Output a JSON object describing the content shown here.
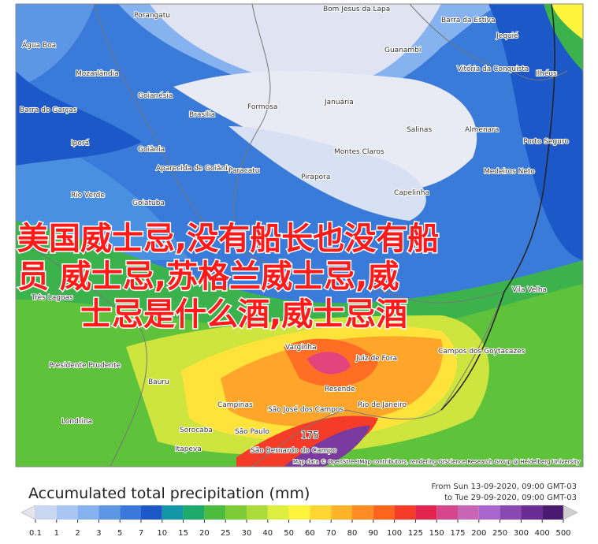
{
  "map": {
    "labels": [
      "Porangatu",
      "Bom Jesus da Lapa",
      "Barra da Estiva",
      "Jequié",
      "Água Boa",
      "Guanambi",
      "Mozarlândia",
      "Vitória da Conquista",
      "Ilhéus",
      "Goianésia",
      "Januária",
      "Barra do Garças",
      "Brasília",
      "Formosa",
      "Salinas",
      "Almenara",
      "Iporá",
      "Goiânia",
      "Montes Claros",
      "Porto Seguro",
      "Aparecida de Goiânia",
      "Paracatu",
      "Pirapora",
      "Medeiros Neto",
      "Rio Verde",
      "Capelinha",
      "Goiatuba",
      "Três Lagoas",
      "Presidente Prudente",
      "Bauru",
      "Varginha",
      "Juiz de Fora",
      "Campos dos Goytacazes",
      "Resende",
      "Rio de Janeiro",
      "Campinas",
      "São José dos Campos",
      "Londrina",
      "Sorocaba",
      "São Paulo",
      "Itapeva",
      "São Bernardo do Campo",
      "Vila Velha",
      "175"
    ],
    "attribution": "Map data © OpenStreetMap contributors, rendering GIScience Research Group @ Heidelberg University"
  },
  "overlay": {
    "lines": [
      "美国威士忌,没有船长也没有船",
      "员 威士忌,苏格兰威士忌,威",
      "士忌是什么酒,威士忌酒"
    ]
  },
  "legend": {
    "title": "Accumulated total precipitation (mm)",
    "from": "From Sun 13-09-2020, 09:00 GMT-03",
    "to": "to Tue 29-09-2020, 09:00 GMT-03",
    "ticks": [
      0.1,
      1,
      2,
      3,
      5,
      7,
      10,
      15,
      20,
      25,
      30,
      40,
      50,
      60,
      70,
      80,
      90,
      100,
      125,
      150,
      175,
      200,
      250,
      300,
      400,
      500
    ],
    "colors": [
      "#e4e4ee",
      "#c8d6f2",
      "#a9c6f2",
      "#86b2f0",
      "#5e96e6",
      "#3a78dc",
      "#1d58c8",
      "#1496a8",
      "#1eaa6a",
      "#4cbc3e",
      "#7ecb38",
      "#acdc3a",
      "#dcee3e",
      "#fff43c",
      "#ffd632",
      "#ffb428",
      "#ff8c22",
      "#ff641e",
      "#f43c28",
      "#e2244e",
      "#d6468c",
      "#c866b6",
      "#aa66cc",
      "#8a48b0",
      "#6a2c92",
      "#4a1a70",
      "#cfcfcf"
    ]
  }
}
